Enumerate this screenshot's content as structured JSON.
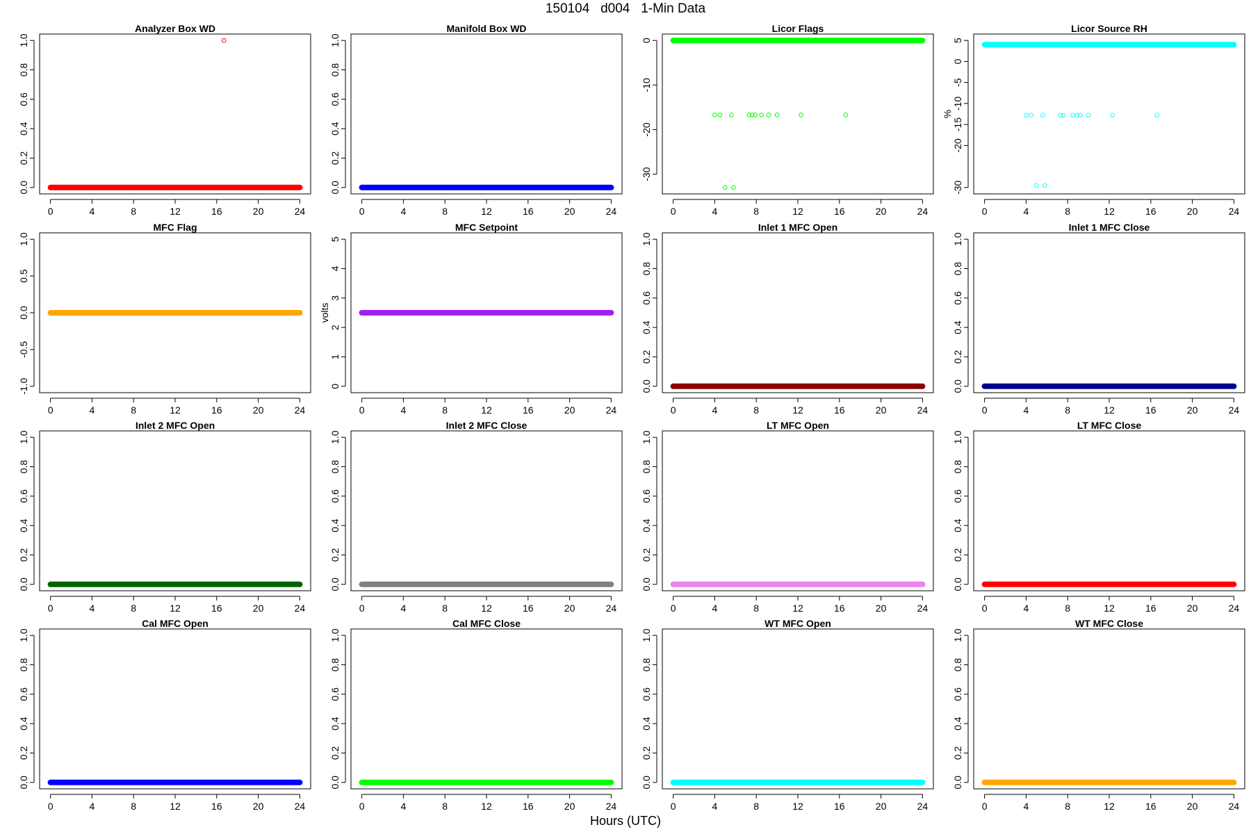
{
  "title": "150104   d004   1-Min Data",
  "xlabel": "Hours (UTC)",
  "chart_data": [
    {
      "type": "scatter",
      "title": "Analyzer Box WD",
      "ylabel": "",
      "color": "#ff0000",
      "xlim": [
        0,
        24
      ],
      "xticks": [
        0,
        4,
        8,
        12,
        16,
        20,
        24
      ],
      "ylim": [
        0,
        1
      ],
      "yticks": [
        "0.0",
        "0.2",
        "0.4",
        "0.6",
        "0.8",
        "1.0"
      ],
      "baseline": 0.0,
      "outliers": [
        [
          16.7,
          1.0
        ]
      ]
    },
    {
      "type": "scatter",
      "title": "Manifold Box WD",
      "ylabel": "",
      "color": "#0000ff",
      "xlim": [
        0,
        24
      ],
      "xticks": [
        0,
        4,
        8,
        12,
        16,
        20,
        24
      ],
      "ylim": [
        0,
        1
      ],
      "yticks": [
        "0.0",
        "0.2",
        "0.4",
        "0.6",
        "0.8",
        "1.0"
      ],
      "baseline": 0.0,
      "outliers": []
    },
    {
      "type": "scatter",
      "title": "Licor Flags",
      "ylabel": "",
      "color": "#00ff00",
      "xlim": [
        0,
        24
      ],
      "xticks": [
        0,
        4,
        8,
        12,
        16,
        20,
        24
      ],
      "ylim": [
        -33,
        0
      ],
      "yticks": [
        "-30",
        "-20",
        "-10",
        "0"
      ],
      "baseline": 0.0,
      "outliers": [
        [
          4.0,
          -16.7
        ],
        [
          4.5,
          -16.7
        ],
        [
          5.6,
          -16.7
        ],
        [
          7.3,
          -16.7
        ],
        [
          7.6,
          -16.7
        ],
        [
          7.9,
          -16.7
        ],
        [
          8.5,
          -16.7
        ],
        [
          9.2,
          -16.7
        ],
        [
          10.0,
          -16.7
        ],
        [
          12.3,
          -16.7
        ],
        [
          16.6,
          -16.7
        ],
        [
          5.0,
          -33.0
        ],
        [
          5.8,
          -33.0
        ]
      ]
    },
    {
      "type": "scatter",
      "title": "Licor Source RH",
      "ylabel": "%",
      "color": "#00ffff",
      "xlim": [
        0,
        24
      ],
      "xticks": [
        0,
        4,
        8,
        12,
        16,
        20,
        24
      ],
      "ylim": [
        -30,
        5
      ],
      "yticks": [
        "-30",
        "-20",
        "-15",
        "-10",
        "-5",
        "0",
        "5"
      ],
      "baseline": 4.0,
      "outliers": [
        [
          4.0,
          -12.8
        ],
        [
          4.5,
          -12.8
        ],
        [
          5.6,
          -12.8
        ],
        [
          7.3,
          -12.8
        ],
        [
          7.6,
          -12.8
        ],
        [
          8.5,
          -12.8
        ],
        [
          8.9,
          -12.8
        ],
        [
          9.2,
          -12.8
        ],
        [
          10.0,
          -12.8
        ],
        [
          12.3,
          -12.8
        ],
        [
          16.6,
          -12.8
        ],
        [
          5.0,
          -29.5
        ],
        [
          5.8,
          -29.5
        ]
      ]
    },
    {
      "type": "scatter",
      "title": "MFC Flag",
      "ylabel": "",
      "color": "#ffa500",
      "xlim": [
        0,
        24
      ],
      "xticks": [
        0,
        4,
        8,
        12,
        16,
        20,
        24
      ],
      "ylim": [
        -1,
        1
      ],
      "yticks": [
        "-1.0",
        "-0.5",
        "0.0",
        "0.5",
        "1.0"
      ],
      "baseline": 0.0,
      "outliers": []
    },
    {
      "type": "scatter",
      "title": "MFC Setpoint",
      "ylabel": "volts",
      "color": "#a020f0",
      "xlim": [
        0,
        24
      ],
      "xticks": [
        0,
        4,
        8,
        12,
        16,
        20,
        24
      ],
      "ylim": [
        0,
        5
      ],
      "yticks": [
        "0",
        "1",
        "2",
        "3",
        "4",
        "5"
      ],
      "baseline": 2.5,
      "outliers": []
    },
    {
      "type": "scatter",
      "title": "Inlet 1 MFC Open",
      "ylabel": "",
      "color": "#8b0000",
      "xlim": [
        0,
        24
      ],
      "xticks": [
        0,
        4,
        8,
        12,
        16,
        20,
        24
      ],
      "ylim": [
        0,
        1
      ],
      "yticks": [
        "0.0",
        "0.2",
        "0.4",
        "0.6",
        "0.8",
        "1.0"
      ],
      "baseline": 0.0,
      "outliers": []
    },
    {
      "type": "scatter",
      "title": "Inlet 1 MFC Close",
      "ylabel": "",
      "color": "#00008b",
      "xlim": [
        0,
        24
      ],
      "xticks": [
        0,
        4,
        8,
        12,
        16,
        20,
        24
      ],
      "ylim": [
        0,
        1
      ],
      "yticks": [
        "0.0",
        "0.2",
        "0.4",
        "0.6",
        "0.8",
        "1.0"
      ],
      "baseline": 0.0,
      "outliers": []
    },
    {
      "type": "scatter",
      "title": "Inlet 2 MFC Open",
      "ylabel": "",
      "color": "#006400",
      "xlim": [
        0,
        24
      ],
      "xticks": [
        0,
        4,
        8,
        12,
        16,
        20,
        24
      ],
      "ylim": [
        0,
        1
      ],
      "yticks": [
        "0.0",
        "0.2",
        "0.4",
        "0.6",
        "0.8",
        "1.0"
      ],
      "baseline": 0.0,
      "outliers": []
    },
    {
      "type": "scatter",
      "title": "Inlet 2 MFC Close",
      "ylabel": "",
      "color": "#808080",
      "xlim": [
        0,
        24
      ],
      "xticks": [
        0,
        4,
        8,
        12,
        16,
        20,
        24
      ],
      "ylim": [
        0,
        1
      ],
      "yticks": [
        "0.0",
        "0.2",
        "0.4",
        "0.6",
        "0.8",
        "1.0"
      ],
      "baseline": 0.0,
      "outliers": []
    },
    {
      "type": "scatter",
      "title": "LT MFC Open",
      "ylabel": "",
      "color": "#ee82ee",
      "xlim": [
        0,
        24
      ],
      "xticks": [
        0,
        4,
        8,
        12,
        16,
        20,
        24
      ],
      "ylim": [
        0,
        1
      ],
      "yticks": [
        "0.0",
        "0.2",
        "0.4",
        "0.6",
        "0.8",
        "1.0"
      ],
      "baseline": 0.0,
      "outliers": []
    },
    {
      "type": "scatter",
      "title": "LT MFC Close",
      "ylabel": "",
      "color": "#ff0000",
      "xlim": [
        0,
        24
      ],
      "xticks": [
        0,
        4,
        8,
        12,
        16,
        20,
        24
      ],
      "ylim": [
        0,
        1
      ],
      "yticks": [
        "0.0",
        "0.2",
        "0.4",
        "0.6",
        "0.8",
        "1.0"
      ],
      "baseline": 0.0,
      "outliers": []
    },
    {
      "type": "scatter",
      "title": "Cal MFC Open",
      "ylabel": "",
      "color": "#0000ff",
      "xlim": [
        0,
        24
      ],
      "xticks": [
        0,
        4,
        8,
        12,
        16,
        20,
        24
      ],
      "ylim": [
        0,
        1
      ],
      "yticks": [
        "0.0",
        "0.2",
        "0.4",
        "0.6",
        "0.8",
        "1.0"
      ],
      "baseline": 0.0,
      "outliers": []
    },
    {
      "type": "scatter",
      "title": "Cal MFC Close",
      "ylabel": "",
      "color": "#00ff00",
      "xlim": [
        0,
        24
      ],
      "xticks": [
        0,
        4,
        8,
        12,
        16,
        20,
        24
      ],
      "ylim": [
        0,
        1
      ],
      "yticks": [
        "0.0",
        "0.2",
        "0.4",
        "0.6",
        "0.8",
        "1.0"
      ],
      "baseline": 0.0,
      "outliers": []
    },
    {
      "type": "scatter",
      "title": "WT MFC Open",
      "ylabel": "",
      "color": "#00ffff",
      "xlim": [
        0,
        24
      ],
      "xticks": [
        0,
        4,
        8,
        12,
        16,
        20,
        24
      ],
      "ylim": [
        0,
        1
      ],
      "yticks": [
        "0.0",
        "0.2",
        "0.4",
        "0.6",
        "0.8",
        "1.0"
      ],
      "baseline": 0.0,
      "outliers": []
    },
    {
      "type": "scatter",
      "title": "WT MFC Close",
      "ylabel": "",
      "color": "#ffa500",
      "xlim": [
        0,
        24
      ],
      "xticks": [
        0,
        4,
        8,
        12,
        16,
        20,
        24
      ],
      "ylim": [
        0,
        1
      ],
      "yticks": [
        "0.0",
        "0.2",
        "0.4",
        "0.6",
        "0.8",
        "1.0"
      ],
      "baseline": 0.0,
      "outliers": []
    }
  ]
}
